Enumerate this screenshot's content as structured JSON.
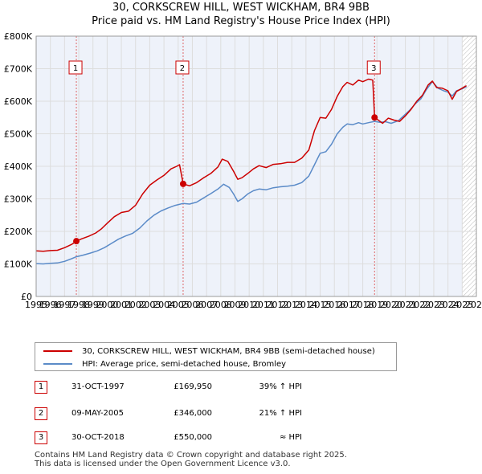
{
  "chart_data": {
    "type": "line",
    "title": "30, CORKSCREW HILL, WEST WICKHAM, BR4 9BB",
    "subtitle": "Price paid vs. HM Land Registry's House Price Index (HPI)",
    "xlabel": "",
    "ylabel": "",
    "xlim": [
      1995,
      2026
    ],
    "ylim": [
      0,
      800000
    ],
    "x_ticks": [
      "1995",
      "1996",
      "1997",
      "1998",
      "1999",
      "2000",
      "2001",
      "2002",
      "2003",
      "2004",
      "2005",
      "2006",
      "2007",
      "2008",
      "2009",
      "2010",
      "2011",
      "2012",
      "2013",
      "2014",
      "2015",
      "2016",
      "2017",
      "2018",
      "2019",
      "2020",
      "2021",
      "2022",
      "2023",
      "2024",
      "2025",
      "2026"
    ],
    "y_ticks": [
      {
        "value": 0,
        "label": "£0"
      },
      {
        "value": 100000,
        "label": "£100K"
      },
      {
        "value": 200000,
        "label": "£200K"
      },
      {
        "value": 300000,
        "label": "£300K"
      },
      {
        "value": 400000,
        "label": "£400K"
      },
      {
        "value": 500000,
        "label": "£500K"
      },
      {
        "value": 600000,
        "label": "£600K"
      },
      {
        "value": 700000,
        "label": "£700K"
      },
      {
        "value": 800000,
        "label": "£800K"
      }
    ],
    "grid": true,
    "forecast_start": 2025.0,
    "series": [
      {
        "name": "30, CORKSCREW HILL, WEST WICKHAM, BR4 9BB (semi-detached house)",
        "color": "#cc0000",
        "points": [
          [
            1995.0,
            140000
          ],
          [
            1995.5,
            139000
          ],
          [
            1996.0,
            141000
          ],
          [
            1996.5,
            142000
          ],
          [
            1997.0,
            150000
          ],
          [
            1997.5,
            160000
          ],
          [
            1997.83,
            169950
          ],
          [
            1998.2,
            177000
          ],
          [
            1998.7,
            185000
          ],
          [
            1999.2,
            195000
          ],
          [
            1999.6,
            208000
          ],
          [
            2000.0,
            225000
          ],
          [
            2000.5,
            245000
          ],
          [
            2001.0,
            258000
          ],
          [
            2001.5,
            262000
          ],
          [
            2002.0,
            280000
          ],
          [
            2002.5,
            315000
          ],
          [
            2003.0,
            342000
          ],
          [
            2003.5,
            358000
          ],
          [
            2004.0,
            372000
          ],
          [
            2004.5,
            392000
          ],
          [
            2004.9,
            400000
          ],
          [
            2005.1,
            405000
          ],
          [
            2005.35,
            346000
          ],
          [
            2005.8,
            340000
          ],
          [
            2006.3,
            350000
          ],
          [
            2006.8,
            365000
          ],
          [
            2007.3,
            378000
          ],
          [
            2007.8,
            398000
          ],
          [
            2008.1,
            422000
          ],
          [
            2008.5,
            415000
          ],
          [
            2008.9,
            385000
          ],
          [
            2009.2,
            360000
          ],
          [
            2009.5,
            365000
          ],
          [
            2009.9,
            378000
          ],
          [
            2010.3,
            392000
          ],
          [
            2010.7,
            402000
          ],
          [
            2011.2,
            396000
          ],
          [
            2011.7,
            406000
          ],
          [
            2012.2,
            408000
          ],
          [
            2012.7,
            412000
          ],
          [
            2013.2,
            412000
          ],
          [
            2013.7,
            425000
          ],
          [
            2014.2,
            450000
          ],
          [
            2014.6,
            510000
          ],
          [
            2015.0,
            550000
          ],
          [
            2015.4,
            548000
          ],
          [
            2015.8,
            575000
          ],
          [
            2016.2,
            615000
          ],
          [
            2016.6,
            645000
          ],
          [
            2016.9,
            658000
          ],
          [
            2017.3,
            650000
          ],
          [
            2017.7,
            665000
          ],
          [
            2018.0,
            660000
          ],
          [
            2018.4,
            668000
          ],
          [
            2018.7,
            665000
          ],
          [
            2018.83,
            550000
          ],
          [
            2019.0,
            545000
          ],
          [
            2019.4,
            532000
          ],
          [
            2019.8,
            548000
          ],
          [
            2020.2,
            542000
          ],
          [
            2020.6,
            538000
          ],
          [
            2021.0,
            555000
          ],
          [
            2021.4,
            575000
          ],
          [
            2021.8,
            600000
          ],
          [
            2022.2,
            618000
          ],
          [
            2022.6,
            650000
          ],
          [
            2022.9,
            662000
          ],
          [
            2023.2,
            642000
          ],
          [
            2023.6,
            640000
          ],
          [
            2024.0,
            632000
          ],
          [
            2024.3,
            606000
          ],
          [
            2024.6,
            630000
          ],
          [
            2025.0,
            640000
          ],
          [
            2025.3,
            648000
          ]
        ]
      },
      {
        "name": "HPI: Average price, semi-detached house, Bromley",
        "color": "#5b8bc8",
        "points": [
          [
            1995.0,
            101000
          ],
          [
            1995.5,
            100000
          ],
          [
            1996.0,
            102000
          ],
          [
            1996.5,
            103000
          ],
          [
            1997.0,
            108000
          ],
          [
            1997.5,
            116000
          ],
          [
            1997.83,
            122000
          ],
          [
            1998.3,
            127000
          ],
          [
            1998.8,
            133000
          ],
          [
            1999.3,
            140000
          ],
          [
            1999.8,
            150000
          ],
          [
            2000.3,
            163000
          ],
          [
            2000.8,
            176000
          ],
          [
            2001.3,
            186000
          ],
          [
            2001.8,
            194000
          ],
          [
            2002.3,
            210000
          ],
          [
            2002.8,
            232000
          ],
          [
            2003.3,
            250000
          ],
          [
            2003.8,
            263000
          ],
          [
            2004.3,
            272000
          ],
          [
            2004.8,
            280000
          ],
          [
            2005.35,
            286000
          ],
          [
            2005.8,
            284000
          ],
          [
            2006.3,
            290000
          ],
          [
            2006.8,
            303000
          ],
          [
            2007.3,
            316000
          ],
          [
            2007.8,
            330000
          ],
          [
            2008.2,
            345000
          ],
          [
            2008.6,
            335000
          ],
          [
            2008.9,
            315000
          ],
          [
            2009.2,
            292000
          ],
          [
            2009.5,
            300000
          ],
          [
            2009.9,
            315000
          ],
          [
            2010.3,
            325000
          ],
          [
            2010.7,
            330000
          ],
          [
            2011.2,
            328000
          ],
          [
            2011.7,
            334000
          ],
          [
            2012.2,
            337000
          ],
          [
            2012.7,
            339000
          ],
          [
            2013.2,
            342000
          ],
          [
            2013.7,
            350000
          ],
          [
            2014.2,
            370000
          ],
          [
            2014.6,
            405000
          ],
          [
            2015.0,
            440000
          ],
          [
            2015.4,
            445000
          ],
          [
            2015.8,
            468000
          ],
          [
            2016.2,
            500000
          ],
          [
            2016.6,
            520000
          ],
          [
            2016.9,
            530000
          ],
          [
            2017.3,
            528000
          ],
          [
            2017.7,
            534000
          ],
          [
            2018.0,
            530000
          ],
          [
            2018.4,
            534000
          ],
          [
            2018.83,
            538000
          ],
          [
            2019.2,
            535000
          ],
          [
            2019.6,
            537000
          ],
          [
            2020.0,
            532000
          ],
          [
            2020.5,
            540000
          ],
          [
            2020.9,
            556000
          ],
          [
            2021.3,
            572000
          ],
          [
            2021.7,
            592000
          ],
          [
            2022.1,
            608000
          ],
          [
            2022.5,
            637000
          ],
          [
            2022.9,
            660000
          ],
          [
            2023.3,
            640000
          ],
          [
            2023.7,
            632000
          ],
          [
            2024.0,
            628000
          ],
          [
            2024.3,
            616000
          ],
          [
            2024.6,
            632000
          ],
          [
            2025.0,
            638000
          ],
          [
            2025.3,
            645000
          ]
        ]
      }
    ],
    "sales": [
      {
        "number": "1",
        "x": 1997.83,
        "price": 169950
      },
      {
        "number": "2",
        "x": 2005.35,
        "price": 346000
      },
      {
        "number": "3",
        "x": 2018.83,
        "price": 550000
      }
    ]
  },
  "legend": {
    "property_label": "30, CORKSCREW HILL, WEST WICKHAM, BR4 9BB (semi-detached house)",
    "hpi_label": "HPI: Average price, semi-detached house, Bromley"
  },
  "transactions": [
    {
      "number": "1",
      "date": "31-OCT-1997",
      "price": "£169,950",
      "hpi": "39% ↑ HPI"
    },
    {
      "number": "2",
      "date": "09-MAY-2005",
      "price": "£346,000",
      "hpi": "21% ↑ HPI"
    },
    {
      "number": "3",
      "date": "30-OCT-2018",
      "price": "£550,000",
      "hpi": "≈ HPI"
    }
  ],
  "footer": {
    "line1": "Contains HM Land Registry data © Crown copyright and database right 2025.",
    "line2": "This data is licensed under the Open Government Licence v3.0."
  },
  "colors": {
    "property": "#cc0000",
    "hpi": "#5b8bc8",
    "grid": "#dddddd",
    "plot_bg": "#eef2fa"
  }
}
